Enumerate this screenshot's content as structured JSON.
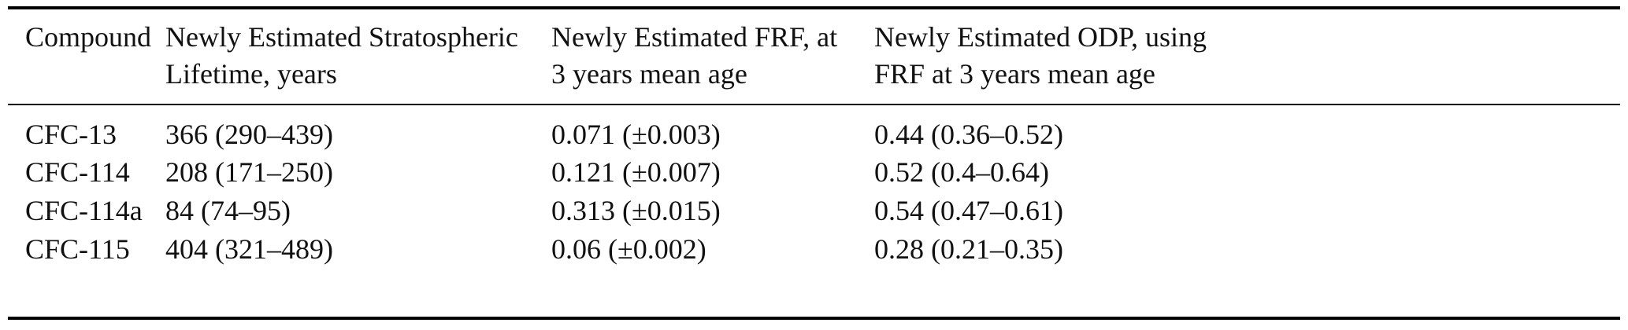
{
  "table": {
    "headers": {
      "compound": "Compound",
      "lifetime": "Newly Estimated Stratospheric\nLifetime, years",
      "frf": "Newly Estimated FRF, at\n3 years mean age",
      "odp": "Newly Estimated ODP, using\nFRF at 3 years mean age"
    },
    "rows": [
      {
        "compound": "CFC-13",
        "lifetime": "366 (290–439)",
        "frf": "0.071 (±0.003)",
        "odp": "0.44 (0.36–0.52)"
      },
      {
        "compound": "CFC-114",
        "lifetime": "208 (171–250)",
        "frf": "0.121 (±0.007)",
        "odp": "0.52 (0.4–0.64)"
      },
      {
        "compound": "CFC-114a",
        "lifetime": "84 (74–95)",
        "frf": "0.313 (±0.015)",
        "odp": "0.54 (0.47–0.61)"
      },
      {
        "compound": "CFC-115",
        "lifetime": "404 (321–489)",
        "frf": "0.06 (±0.002)",
        "odp": "0.28 (0.21–0.35)"
      }
    ],
    "text_color": "#111111",
    "rule_color": "#000000"
  }
}
